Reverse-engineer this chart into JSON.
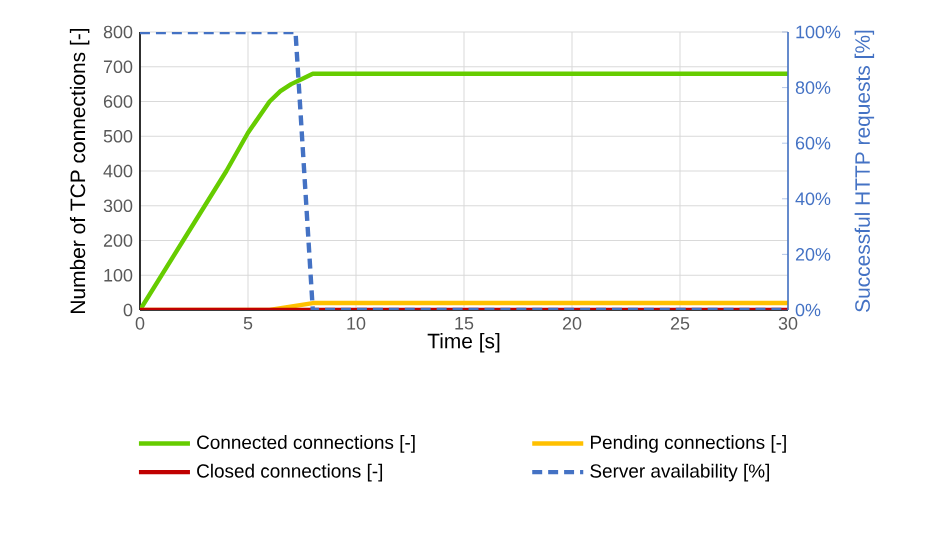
{
  "chart_data": {
    "type": "line",
    "xlabel": "Time [s]",
    "ylabel": "Number of TCP connections [-]",
    "y2label": "Successful HTTP requests [%]",
    "xlim": [
      0,
      30
    ],
    "xticks": [
      0,
      5,
      10,
      15,
      20,
      25,
      30
    ],
    "ylim": [
      0,
      800
    ],
    "yticks": [
      0,
      100,
      200,
      300,
      400,
      500,
      600,
      700,
      800
    ],
    "y2lim": [
      0,
      100
    ],
    "y2ticks": [
      {
        "value": 0,
        "label": "0%"
      },
      {
        "value": 20,
        "label": "20%"
      },
      {
        "value": 40,
        "label": "40%"
      },
      {
        "value": 60,
        "label": "60%"
      },
      {
        "value": 80,
        "label": "80%"
      },
      {
        "value": 100,
        "label": "100%"
      }
    ],
    "grid": true,
    "legend": "bottom",
    "marker": "none",
    "series": [
      {
        "name": "Connected connections [-]",
        "color": "#66cc00",
        "x": [
          0,
          1,
          2,
          3,
          4,
          5,
          6,
          6.5,
          7,
          7.5,
          8,
          30
        ],
        "values": [
          0,
          100,
          200,
          300,
          400,
          510,
          600,
          630,
          650,
          665,
          680,
          680
        ]
      },
      {
        "name": "Pending connections [-]",
        "color": "#ffc000",
        "x": [
          0,
          6,
          7,
          8,
          30
        ],
        "values": [
          0,
          0,
          10,
          20,
          20
        ]
      },
      {
        "name": "Closed connections [-]",
        "color": "#c00000",
        "x": [
          0,
          30
        ],
        "values": [
          0,
          0
        ]
      },
      {
        "name": "Server availability [%]",
        "color": "#4472c4",
        "axis": "y2",
        "line_style": "dashed",
        "x": [
          0,
          7.2,
          8,
          30
        ],
        "values": [
          100,
          100,
          0,
          0
        ]
      }
    ]
  }
}
